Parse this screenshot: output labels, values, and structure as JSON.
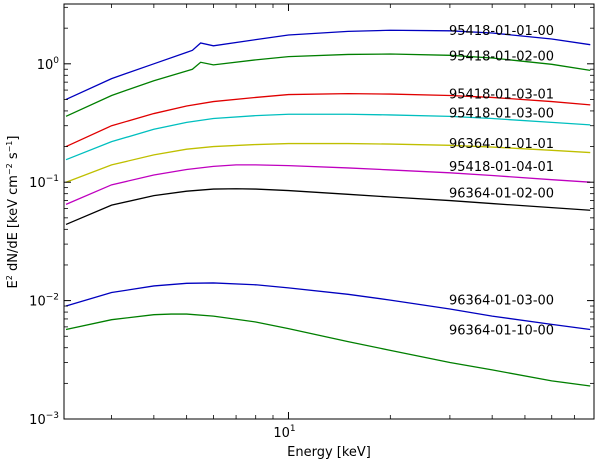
{
  "chart_data": {
    "type": "line",
    "title": "",
    "xlabel": "Energy [keV]",
    "ylabel_main": "E",
    "ylabel_sup": "2",
    "ylabel_rest": " dN/dE [keV cm",
    "ylabel_sup2": "−2",
    "ylabel_s": " s",
    "ylabel_sup3": "−1",
    "ylabel_close": "]",
    "xscale": "log",
    "yscale": "log",
    "xlim": [
      2.17,
      80
    ],
    "ylim": [
      0.001,
      3.2
    ],
    "x_ticks": [
      {
        "value": 10,
        "label": "10"
      }
    ],
    "x_label_base": "10",
    "x_label_exp": "1",
    "y_ticks": [
      {
        "value": 0.001,
        "base": "10",
        "exp": "−3"
      },
      {
        "value": 0.01,
        "base": "10",
        "exp": "−2"
      },
      {
        "value": 0.1,
        "base": "10",
        "exp": "−1"
      },
      {
        "value": 1,
        "base": "10",
        "exp": "0"
      }
    ],
    "grid": false,
    "series": [
      {
        "name": "95418-01-01-00",
        "color": "#0000bf",
        "x": [
          2.2,
          3,
          4,
          5,
          5.2,
          5.5,
          6,
          8,
          10,
          15,
          20,
          30,
          40,
          60,
          78
        ],
        "y": [
          0.5,
          0.75,
          1.0,
          1.25,
          1.3,
          1.5,
          1.42,
          1.6,
          1.75,
          1.88,
          1.92,
          1.9,
          1.82,
          1.62,
          1.45
        ],
        "label_y": 1.9
      },
      {
        "name": "95418-01-02-00",
        "color": "#007f00",
        "x": [
          2.2,
          3,
          4,
          5,
          5.2,
          5.5,
          6,
          8,
          10,
          15,
          20,
          30,
          40,
          60,
          78
        ],
        "y": [
          0.36,
          0.54,
          0.72,
          0.87,
          0.9,
          1.03,
          0.98,
          1.08,
          1.15,
          1.2,
          1.21,
          1.18,
          1.12,
          0.99,
          0.88
        ],
        "label_y": 1.15
      },
      {
        "name": "95418-01-03-01",
        "color": "#e00000",
        "x": [
          2.2,
          3,
          4,
          5,
          6,
          8,
          10,
          15,
          20,
          30,
          40,
          60,
          78
        ],
        "y": [
          0.2,
          0.3,
          0.38,
          0.44,
          0.48,
          0.52,
          0.55,
          0.56,
          0.555,
          0.54,
          0.52,
          0.48,
          0.45
        ],
        "label_y": 0.55
      },
      {
        "name": "95418-01-03-00",
        "color": "#00bfbf",
        "x": [
          2.2,
          3,
          4,
          5,
          6,
          8,
          10,
          15,
          20,
          30,
          40,
          60,
          78
        ],
        "y": [
          0.155,
          0.22,
          0.28,
          0.32,
          0.345,
          0.365,
          0.375,
          0.375,
          0.37,
          0.36,
          0.345,
          0.32,
          0.305
        ],
        "label_y": 0.38
      },
      {
        "name": "96364-01-01-01",
        "color": "#bfbf00",
        "x": [
          2.2,
          3,
          4,
          5,
          6,
          8,
          10,
          15,
          20,
          30,
          40,
          60,
          78
        ],
        "y": [
          0.1,
          0.14,
          0.17,
          0.19,
          0.2,
          0.208,
          0.212,
          0.212,
          0.21,
          0.205,
          0.198,
          0.186,
          0.178
        ],
        "label_y": 0.21
      },
      {
        "name": "95418-01-04-01",
        "color": "#bf00bf",
        "x": [
          2.2,
          3,
          4,
          5,
          6,
          7,
          8,
          10,
          15,
          20,
          30,
          40,
          60,
          78
        ],
        "y": [
          0.065,
          0.095,
          0.115,
          0.128,
          0.136,
          0.14,
          0.14,
          0.138,
          0.132,
          0.127,
          0.12,
          0.114,
          0.105,
          0.1
        ],
        "label_y": 0.135
      },
      {
        "name": "96364-01-02-00",
        "color": "#000000",
        "x": [
          2.2,
          3,
          4,
          5,
          6,
          7,
          8,
          10,
          15,
          20,
          30,
          40,
          60,
          78
        ],
        "y": [
          0.044,
          0.064,
          0.077,
          0.084,
          0.0875,
          0.088,
          0.0875,
          0.085,
          0.079,
          0.075,
          0.07,
          0.066,
          0.061,
          0.058
        ],
        "label_y": 0.08
      },
      {
        "name": "96364-01-03-00",
        "color": "#0000bf",
        "x": [
          2.2,
          3,
          4,
          5,
          6,
          8,
          10,
          15,
          20,
          30,
          40,
          60,
          78
        ],
        "y": [
          0.009,
          0.0117,
          0.0133,
          0.014,
          0.0141,
          0.0136,
          0.0128,
          0.0113,
          0.0101,
          0.0085,
          0.0074,
          0.0063,
          0.0057
        ],
        "label_y": 0.01
      },
      {
        "name": "96364-01-10-00",
        "color": "#007f00",
        "x": [
          2.2,
          3,
          4,
          4.5,
          5,
          6,
          8,
          10,
          15,
          20,
          30,
          40,
          60,
          78
        ],
        "y": [
          0.0057,
          0.0069,
          0.0076,
          0.0077,
          0.0077,
          0.0074,
          0.0066,
          0.0058,
          0.0045,
          0.0038,
          0.003,
          0.0026,
          0.0021,
          0.0019
        ],
        "label_y": 0.0056
      }
    ]
  }
}
